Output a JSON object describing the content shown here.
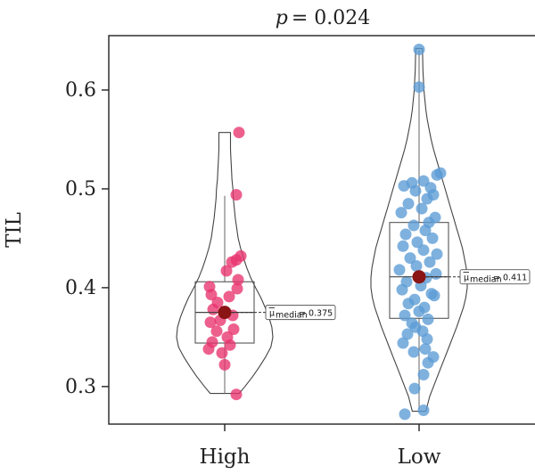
{
  "chart_data": {
    "type": "scatter",
    "subtype": "violin-box-jitter",
    "title": "p = 0.024",
    "title_prefix": "p",
    "title_value": "= 0.024",
    "xlabel": "",
    "ylabel": "TIL",
    "categories": [
      "High",
      "Low"
    ],
    "ylim": [
      0.262,
      0.655
    ],
    "yticks": [
      0.3,
      0.4,
      0.5,
      0.6
    ],
    "ytick_labels": [
      "0.3",
      "0.4",
      "0.5",
      "0.6"
    ],
    "grid": false,
    "legend": "none",
    "groups": [
      {
        "name": "High",
        "color": "#e8336e",
        "median": 0.375,
        "median_label": "= 0.375",
        "box": {
          "q1": 0.344,
          "median": 0.375,
          "q3": 0.406,
          "whisker_low": 0.293,
          "whisker_high": 0.493
        },
        "violin": {
          "y": [
            0.293,
            0.3,
            0.31,
            0.32,
            0.33,
            0.34,
            0.35,
            0.36,
            0.37,
            0.38,
            0.39,
            0.4,
            0.41,
            0.42,
            0.43,
            0.44,
            0.45,
            0.46,
            0.47,
            0.48,
            0.49,
            0.5,
            0.51,
            0.52,
            0.53,
            0.54,
            0.557
          ],
          "width": [
            0.3,
            0.42,
            0.58,
            0.72,
            0.85,
            0.96,
            1.0,
            0.98,
            0.92,
            0.84,
            0.75,
            0.64,
            0.54,
            0.46,
            0.39,
            0.33,
            0.28,
            0.25,
            0.22,
            0.2,
            0.18,
            0.17,
            0.15,
            0.14,
            0.13,
            0.12,
            0.12
          ]
        },
        "points": [
          [
            0.16,
            0.557
          ],
          [
            0.13,
            0.494
          ],
          [
            0.18,
            0.432
          ],
          [
            0.13,
            0.428
          ],
          [
            0.08,
            0.426
          ],
          [
            0.02,
            0.417
          ],
          [
            0.15,
            0.408
          ],
          [
            -0.17,
            0.401
          ],
          [
            0.14,
            0.399
          ],
          [
            -0.15,
            0.393
          ],
          [
            0.05,
            0.391
          ],
          [
            -0.08,
            0.385
          ],
          [
            -0.13,
            0.378
          ],
          [
            0.09,
            0.372
          ],
          [
            -0.05,
            0.367
          ],
          [
            -0.16,
            0.365
          ],
          [
            0.1,
            0.358
          ],
          [
            -0.09,
            0.356
          ],
          [
            0.03,
            0.35
          ],
          [
            -0.14,
            0.345
          ],
          [
            0.06,
            0.342
          ],
          [
            -0.18,
            0.338
          ],
          [
            -0.03,
            0.334
          ],
          [
            0.0,
            0.322
          ],
          [
            0.13,
            0.292
          ]
        ]
      },
      {
        "name": "Low",
        "color": "#5b9bd5",
        "median": 0.411,
        "median_label": "= 0.411",
        "box": {
          "q1": 0.369,
          "median": 0.411,
          "q3": 0.466,
          "whisker_low": 0.277,
          "whisker_high": 0.64
        },
        "violin": {
          "y": [
            0.275,
            0.29,
            0.3,
            0.31,
            0.32,
            0.33,
            0.34,
            0.35,
            0.36,
            0.37,
            0.38,
            0.39,
            0.4,
            0.41,
            0.42,
            0.43,
            0.44,
            0.45,
            0.46,
            0.47,
            0.48,
            0.49,
            0.5,
            0.51,
            0.52,
            0.53,
            0.54,
            0.55,
            0.56,
            0.57,
            0.58,
            0.59,
            0.6,
            0.61,
            0.62,
            0.642
          ],
          "width": [
            0.14,
            0.22,
            0.3,
            0.38,
            0.46,
            0.54,
            0.62,
            0.7,
            0.78,
            0.85,
            0.92,
            0.97,
            1.0,
            1.0,
            0.98,
            0.94,
            0.9,
            0.84,
            0.78,
            0.72,
            0.66,
            0.6,
            0.54,
            0.48,
            0.42,
            0.36,
            0.3,
            0.25,
            0.21,
            0.17,
            0.14,
            0.12,
            0.1,
            0.09,
            0.08,
            0.07
          ]
        },
        "points": [
          [
            0.0,
            0.641
          ],
          [
            0.0,
            0.603
          ],
          [
            0.24,
            0.516
          ],
          [
            0.2,
            0.514
          ],
          [
            0.05,
            0.508
          ],
          [
            -0.08,
            0.506
          ],
          [
            -0.17,
            0.503
          ],
          [
            0.13,
            0.501
          ],
          [
            -0.04,
            0.498
          ],
          [
            0.16,
            0.494
          ],
          [
            0.09,
            0.49
          ],
          [
            -0.12,
            0.485
          ],
          [
            0.03,
            0.48
          ],
          [
            -0.2,
            0.476
          ],
          [
            0.18,
            0.471
          ],
          [
            0.11,
            0.466
          ],
          [
            -0.06,
            0.463
          ],
          [
            0.07,
            0.458
          ],
          [
            -0.15,
            0.454
          ],
          [
            0.15,
            0.45
          ],
          [
            -0.02,
            0.446
          ],
          [
            -0.18,
            0.442
          ],
          [
            0.05,
            0.438
          ],
          [
            0.2,
            0.434
          ],
          [
            -0.1,
            0.43
          ],
          [
            0.12,
            0.426
          ],
          [
            -0.03,
            0.422
          ],
          [
            -0.22,
            0.418
          ],
          [
            0.19,
            0.414
          ],
          [
            0.08,
            0.41
          ],
          [
            -0.14,
            0.406
          ],
          [
            0.02,
            0.402
          ],
          [
            -0.19,
            0.398
          ],
          [
            0.14,
            0.394
          ],
          [
            0.17,
            0.392
          ],
          [
            -0.05,
            0.388
          ],
          [
            -0.12,
            0.384
          ],
          [
            0.06,
            0.38
          ],
          [
            0.0,
            0.376
          ],
          [
            -0.16,
            0.372
          ],
          [
            0.1,
            0.368
          ],
          [
            -0.08,
            0.364
          ],
          [
            -0.04,
            0.36
          ],
          [
            0.04,
            0.356
          ],
          [
            -0.13,
            0.353
          ],
          [
            0.09,
            0.348
          ],
          [
            -0.18,
            0.344
          ],
          [
            0.07,
            0.338
          ],
          [
            -0.06,
            0.335
          ],
          [
            0.16,
            0.33
          ],
          [
            0.1,
            0.324
          ],
          [
            0.05,
            0.312
          ],
          [
            -0.05,
            0.298
          ],
          [
            0.05,
            0.276
          ],
          [
            -0.16,
            0.272
          ]
        ]
      }
    ]
  }
}
